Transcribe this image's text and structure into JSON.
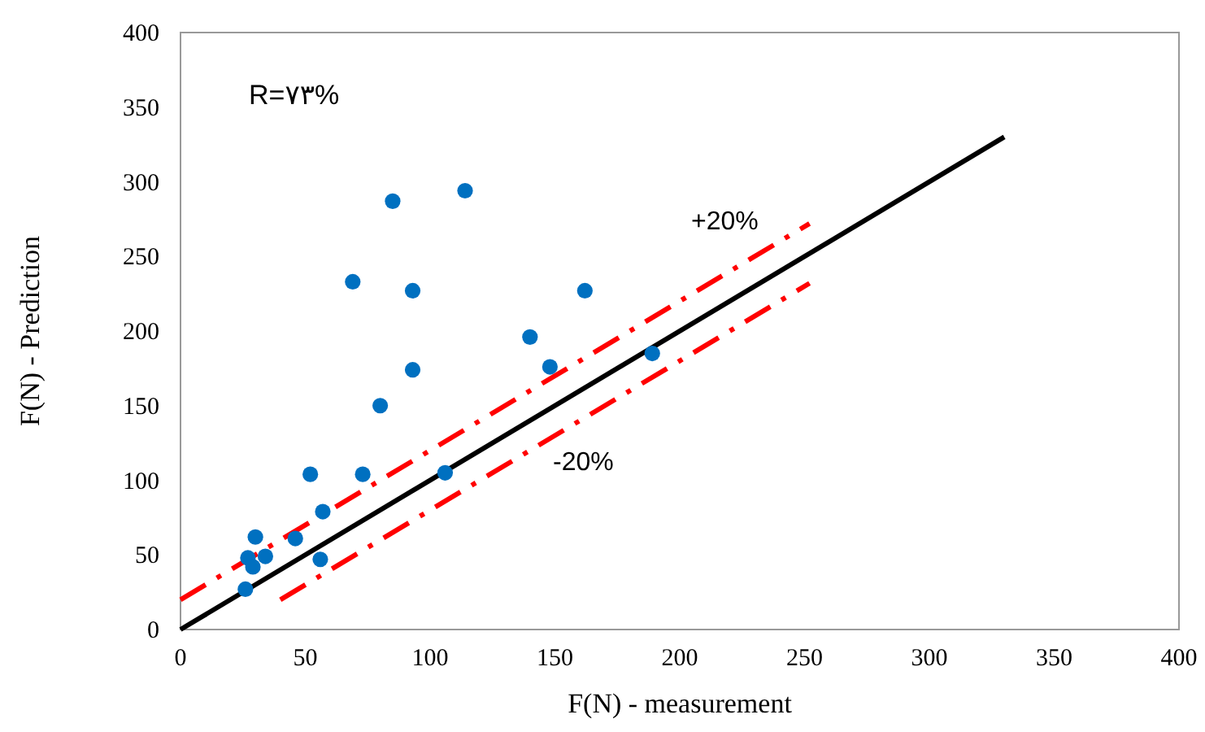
{
  "chart_data": {
    "type": "scatter",
    "xlabel": "F(N) - measurement",
    "ylabel": "F(N) - Prediction",
    "xlim": [
      0,
      400
    ],
    "ylim": [
      0,
      400
    ],
    "xticks": [
      0,
      50,
      100,
      150,
      200,
      250,
      300,
      350,
      400
    ],
    "yticks": [
      0,
      50,
      100,
      150,
      200,
      250,
      300,
      350,
      400
    ],
    "grid": false,
    "marker": "circle",
    "series": [
      {
        "color": "#0070c0",
        "x": [
          26,
          27,
          29,
          30,
          34,
          46,
          56,
          57,
          52,
          73,
          80,
          69,
          85,
          93,
          93,
          106,
          114,
          140,
          148,
          162,
          189
        ],
        "values": [
          27,
          48,
          42,
          62,
          49,
          61,
          47,
          79,
          104,
          104,
          150,
          233,
          287,
          227,
          174,
          105,
          294,
          196,
          176,
          227,
          185
        ]
      },
      {
        "type": "line",
        "color": "#000000",
        "line_style": "solid",
        "marker": "none",
        "x": [
          0,
          330
        ],
        "values": [
          0,
          330
        ]
      },
      {
        "type": "line",
        "color": "#ff0000",
        "line_style": "dashdot",
        "marker": "none",
        "x": [
          0,
          252
        ],
        "values": [
          20,
          272
        ]
      },
      {
        "type": "line",
        "color": "#ff0000",
        "line_style": "dashdot",
        "marker": "none",
        "x": [
          40,
          252
        ],
        "values": [
          20,
          232
        ]
      }
    ],
    "annotations": [
      "R=٧٣%",
      "+20%",
      "-20%"
    ]
  }
}
